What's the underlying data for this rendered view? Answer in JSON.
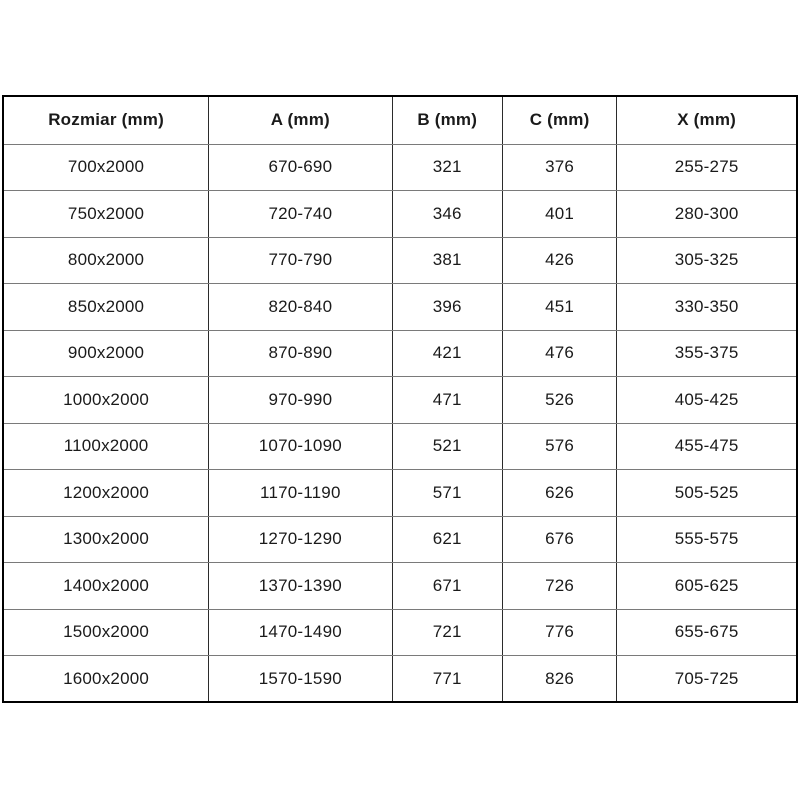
{
  "table": {
    "columns": [
      "Rozmiar (mm)",
      "A (mm)",
      "B (mm)",
      "C (mm)",
      "X (mm)"
    ],
    "rows": [
      [
        "700x2000",
        "670-690",
        "321",
        "376",
        "255-275"
      ],
      [
        "750x2000",
        "720-740",
        "346",
        "401",
        "280-300"
      ],
      [
        "800x2000",
        "770-790",
        "381",
        "426",
        "305-325"
      ],
      [
        "850x2000",
        "820-840",
        "396",
        "451",
        "330-350"
      ],
      [
        "900x2000",
        "870-890",
        "421",
        "476",
        "355-375"
      ],
      [
        "1000x2000",
        "970-990",
        "471",
        "526",
        "405-425"
      ],
      [
        "1100x2000",
        "1070-1090",
        "521",
        "576",
        "455-475"
      ],
      [
        "1200x2000",
        "1170-1190",
        "571",
        "626",
        "505-525"
      ],
      [
        "1300x2000",
        "1270-1290",
        "621",
        "676",
        "555-575"
      ],
      [
        "1400x2000",
        "1370-1390",
        "671",
        "726",
        "605-625"
      ],
      [
        "1500x2000",
        "1470-1490",
        "721",
        "776",
        "655-675"
      ],
      [
        "1600x2000",
        "1570-1590",
        "771",
        "826",
        "705-725"
      ]
    ],
    "colors": {
      "background": "#ffffff",
      "text": "#1a1a1a",
      "border_outer": "#000000",
      "border_inner": "#7a7a7a"
    }
  }
}
